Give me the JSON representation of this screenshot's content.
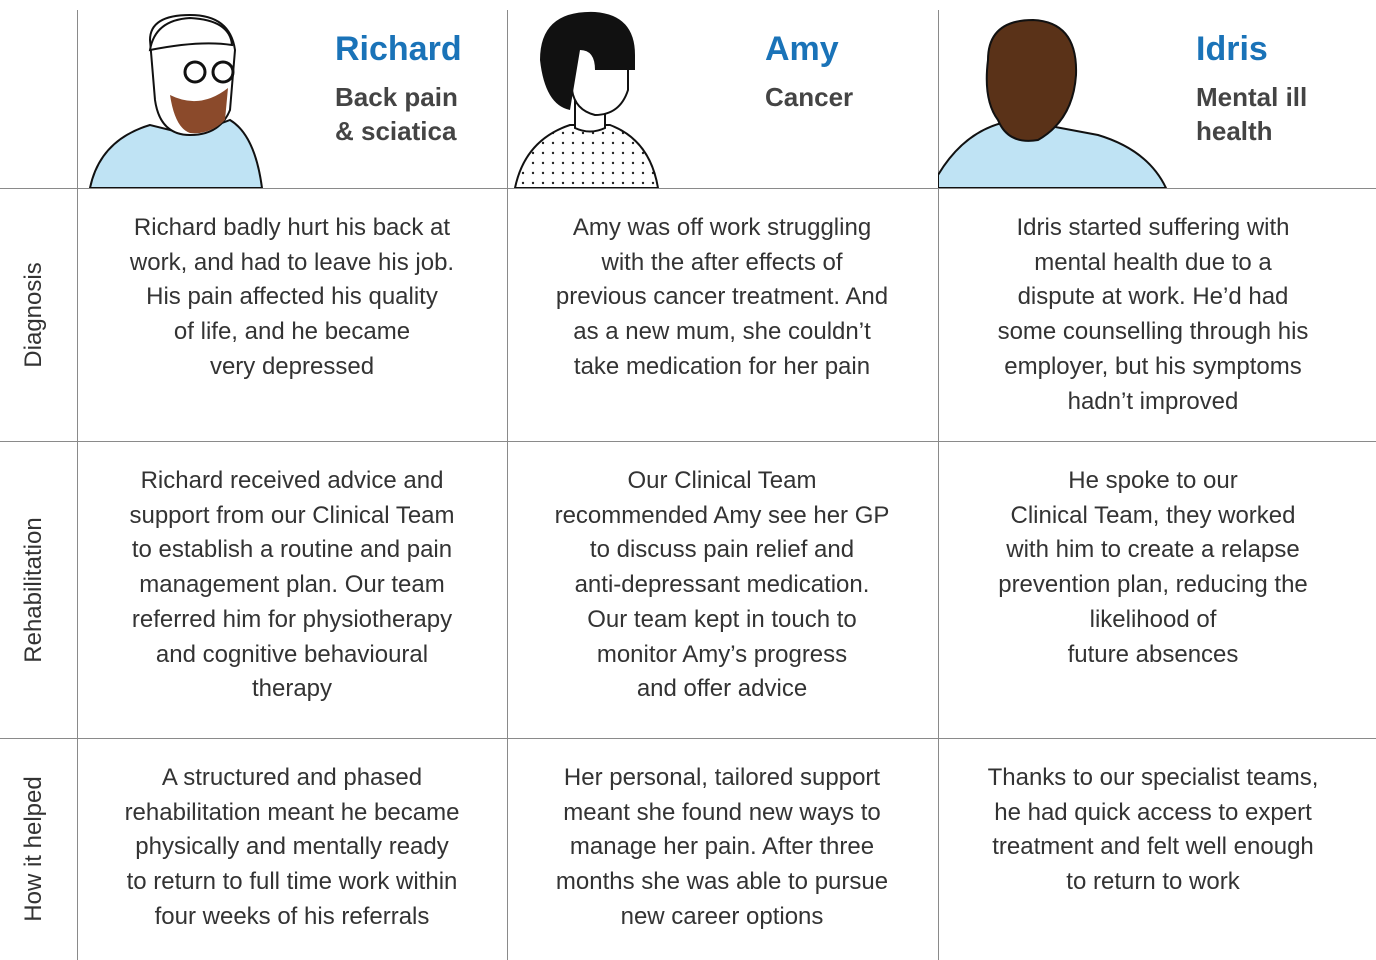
{
  "columns": [
    {
      "name": "Richard",
      "condition": [
        "Back pain",
        "& sciatica"
      ]
    },
    {
      "name": "Amy",
      "condition": [
        "Cancer"
      ]
    },
    {
      "name": "Idris",
      "condition": [
        "Mental ill",
        "health"
      ]
    }
  ],
  "rows": [
    {
      "label": "Diagnosis",
      "cells": [
        [
          "Richard badly hurt his back at",
          "work, and had to leave his job.",
          "His pain affected his quality",
          "of life, and he became",
          "very depressed"
        ],
        [
          "Amy was off work struggling",
          "with the after effects of",
          "previous cancer treatment. And",
          "as a new mum, she couldn’t",
          "take medication for her pain"
        ],
        [
          "Idris started suffering with",
          "mental health due to a",
          "dispute at work. He’d had",
          "some counselling through his",
          "employer, but his symptoms",
          "hadn’t improved"
        ]
      ]
    },
    {
      "label": "Rehabilitation",
      "cells": [
        [
          "Richard received advice and",
          "support from our Clinical Team",
          "to establish a routine and pain",
          "management plan. Our team",
          "referred him for physiotherapy",
          "and cognitive behavioural",
          "therapy"
        ],
        [
          "Our Clinical Team",
          "recommended Amy see her GP",
          "to discuss pain relief and",
          "anti-depressant medication.",
          "Our team kept in touch to",
          "monitor Amy’s progress",
          "and offer advice"
        ],
        [
          "He spoke to our",
          "Clinical Team, they worked",
          "with him to create a relapse",
          "prevention plan, reducing the",
          "likelihood of",
          "future absences"
        ]
      ]
    },
    {
      "label": "How it helped",
      "cells": [
        [
          "A structured and phased",
          "rehabilitation meant he became",
          "physically and mentally ready",
          "to return to full time work within",
          "four weeks of his referrals"
        ],
        [
          "Her personal, tailored support",
          "meant she found new ways to",
          "manage her pain. After three",
          "months she was able to pursue",
          "new career options"
        ],
        [
          "Thanks to our specialist teams,",
          "he had quick access to expert",
          "treatment and felt well enough",
          "to return to work"
        ]
      ]
    }
  ]
}
